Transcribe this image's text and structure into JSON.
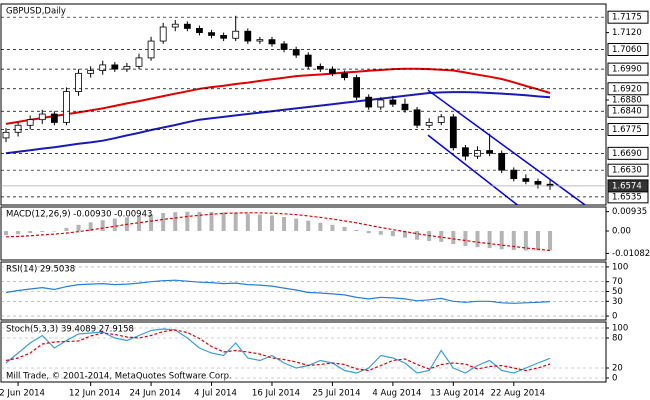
{
  "chart_data": [
    {
      "type": "candlestick",
      "title": "GBPUSD,Daily",
      "categories": [
        null,
        "2 Jun 2014",
        null,
        null,
        null,
        null,
        null,
        "12 Jun 2014",
        null,
        null,
        null,
        null,
        "24 Jun 2014",
        null,
        null,
        null,
        null,
        "4 Jul 2014",
        null,
        null,
        null,
        null,
        "16 Jul 2014",
        null,
        null,
        null,
        null,
        "25 Jul 2014",
        null,
        null,
        null,
        null,
        "4 Aug 2014",
        null,
        null,
        null,
        null,
        "13 Aug 2014",
        null,
        null,
        null,
        null,
        "22 Aug 2014",
        null,
        null,
        null
      ],
      "open": [
        1.6745,
        1.6765,
        1.679,
        1.681,
        1.683,
        1.68,
        1.691,
        1.6975,
        1.6985,
        1.7005,
        1.699,
        1.7,
        1.703,
        1.709,
        1.714,
        1.715,
        1.7135,
        1.712,
        1.711,
        1.71,
        1.7125,
        1.709,
        1.7095,
        1.708,
        1.706,
        1.704,
        1.7,
        1.699,
        1.6975,
        1.696,
        1.689,
        1.6855,
        1.688,
        1.6865,
        1.6845,
        1.679,
        1.68,
        1.682,
        1.671,
        1.668,
        1.67,
        1.669,
        1.663,
        1.66,
        1.659,
        1.658
      ],
      "high": [
        1.678,
        1.68,
        1.6825,
        1.6845,
        1.684,
        1.6925,
        1.699,
        1.7,
        1.702,
        1.7015,
        1.7012,
        1.7045,
        1.7105,
        1.7155,
        1.7165,
        1.716,
        1.7145,
        1.713,
        1.712,
        1.718,
        1.7135,
        1.7105,
        1.7105,
        1.709,
        1.707,
        1.705,
        1.701,
        1.7,
        1.6985,
        1.697,
        1.69,
        1.689,
        1.6895,
        1.6885,
        1.6855,
        1.6815,
        1.683,
        1.683,
        1.672,
        1.6715,
        1.676,
        1.67,
        1.664,
        1.6615,
        1.66,
        1.6595
      ],
      "low": [
        1.673,
        1.675,
        1.6775,
        1.6795,
        1.679,
        1.679,
        1.6895,
        1.696,
        1.697,
        1.698,
        1.698,
        1.699,
        1.702,
        1.708,
        1.7125,
        1.7125,
        1.711,
        1.71,
        1.709,
        1.709,
        1.708,
        1.708,
        1.707,
        1.705,
        1.703,
        1.699,
        1.698,
        1.6965,
        1.695,
        1.688,
        1.6845,
        1.6845,
        1.6855,
        1.6835,
        1.678,
        1.678,
        1.679,
        1.67,
        1.6665,
        1.667,
        1.668,
        1.662,
        1.659,
        1.658,
        1.6565,
        1.656
      ],
      "close": [
        1.6765,
        1.679,
        1.681,
        1.683,
        1.68,
        1.691,
        1.6975,
        1.6985,
        1.7005,
        1.699,
        1.7,
        1.703,
        1.709,
        1.714,
        1.715,
        1.7135,
        1.712,
        1.711,
        1.71,
        1.7125,
        1.709,
        1.7095,
        1.708,
        1.706,
        1.704,
        1.7,
        1.699,
        1.6975,
        1.696,
        1.689,
        1.6855,
        1.688,
        1.6865,
        1.6845,
        1.679,
        1.68,
        1.682,
        1.671,
        1.668,
        1.67,
        1.669,
        1.663,
        1.66,
        1.659,
        1.658,
        1.6574
      ],
      "series": [
        {
          "color": "#e00000",
          "values": [
            1.6795,
            1.6802,
            1.6809,
            1.6816,
            1.6823,
            1.6829,
            1.6836,
            1.6843,
            1.685,
            1.6859,
            1.6868,
            1.6876,
            1.6885,
            1.6894,
            1.6903,
            1.6911,
            1.692,
            1.6926,
            1.6931,
            1.6937,
            1.6942,
            1.6948,
            1.6954,
            1.6959,
            1.6965,
            1.6968,
            1.6971,
            1.6974,
            1.6978,
            1.6981,
            1.6984,
            1.6987,
            1.699,
            1.6991,
            1.6991,
            1.699,
            1.6988,
            1.6985,
            1.6978,
            1.697,
            1.6963,
            1.6955,
            1.6943,
            1.693,
            1.6918,
            1.6905
          ]
        },
        {
          "color": "#1a1ab4",
          "values": [
            1.669,
            1.6696,
            1.6701,
            1.6707,
            1.6712,
            1.6718,
            1.6724,
            1.6729,
            1.6735,
            1.6744,
            1.6754,
            1.6763,
            1.6773,
            1.6782,
            1.6791,
            1.6801,
            1.681,
            1.6815,
            1.682,
            1.6825,
            1.683,
            1.6835,
            1.684,
            1.6845,
            1.685,
            1.6855,
            1.686,
            1.6865,
            1.687,
            1.6875,
            1.688,
            1.6885,
            1.689,
            1.6895,
            1.69,
            1.6905,
            1.6907,
            1.6908,
            1.6908,
            1.6907,
            1.6905,
            1.6903,
            1.69,
            1.6897,
            1.6893,
            1.689
          ]
        }
      ],
      "channel": [
        {
          "x": [
            34.9,
            47.9
          ],
          "values": [
            1.6915,
            1.6506
          ]
        },
        {
          "x": [
            34.9,
            42.3
          ],
          "values": [
            1.6755,
            1.6506
          ]
        }
      ],
      "channel_color": "#0000ff",
      "ylim": [
        1.6506,
        1.7222
      ],
      "yticks": [
        {
          "value": 1.712,
          "label": "1.7120"
        },
        {
          "value": 1.688,
          "label": "1.6880"
        }
      ],
      "levels": [
        1.7175,
        {
          "value": 1.706,
          "label": "1.7060"
        },
        {
          "value": 1.699,
          "label": "1.6990"
        },
        {
          "value": 1.692,
          "label": "1.6920"
        },
        {
          "value": 1.684,
          "label": "1.6840"
        },
        1.6775,
        {
          "value": 1.669,
          "label": "1.6690"
        },
        {
          "value": 1.663,
          "label": "1.6630"
        },
        1.6535
      ],
      "current": 1.6574
    },
    {
      "type": "macd",
      "title": "MACD(12,26,9) -0.00930 -0.00943",
      "values": [
        -0.002,
        -0.0015,
        -0.001,
        -0.0005,
        0.0,
        0.0015,
        0.003,
        0.0042,
        0.0052,
        0.006,
        0.0066,
        0.0072,
        0.008,
        0.0087,
        0.0091,
        0.0093,
        0.0093,
        0.0092,
        0.009,
        0.0088,
        0.0084,
        0.008,
        0.0075,
        0.0068,
        0.006,
        0.005,
        0.004,
        0.003,
        0.002,
        0.0005,
        -0.001,
        -0.0018,
        -0.0025,
        -0.0032,
        -0.0042,
        -0.0048,
        -0.0052,
        -0.0063,
        -0.0072,
        -0.0078,
        -0.0082,
        -0.0088,
        -0.0092,
        -0.0094,
        -0.0094,
        -0.0093
      ],
      "color": "#b4b4b4",
      "series": [
        {
          "color": "#e00000",
          "values": [
            -0.0028,
            -0.0026,
            -0.0023,
            -0.0019,
            -0.0015,
            -0.001,
            -0.0003,
            0.0005,
            0.0014,
            0.0023,
            0.0032,
            0.004,
            0.0048,
            0.0056,
            0.0063,
            0.007,
            0.0076,
            0.0081,
            0.0085,
            0.0087,
            0.0088,
            0.0088,
            0.0086,
            0.0083,
            0.0079,
            0.0073,
            0.0066,
            0.0058,
            0.0049,
            0.0039,
            0.0028,
            0.0017,
            0.0007,
            -0.0003,
            -0.0013,
            -0.0022,
            -0.003,
            -0.0038,
            -0.0046,
            -0.0054,
            -0.0061,
            -0.0068,
            -0.0075,
            -0.0082,
            -0.0088,
            -0.0094
          ]
        }
      ],
      "ylim": [
        -0.014,
        0.0116
      ],
      "yticks": [
        0.00935,
        {
          "value": 0,
          "label": "0.00"
        },
        -0.01082
      ]
    },
    {
      "type": "line",
      "title": "RSI(14) 29.5038",
      "series": [
        {
          "color": "#2a7fd4",
          "values": [
            48,
            52,
            55,
            58,
            54,
            60,
            64,
            65,
            66,
            64,
            65,
            67,
            70,
            72,
            73,
            71,
            69,
            68,
            66,
            67,
            64,
            63,
            61,
            57,
            53,
            48,
            47,
            45,
            43,
            38,
            35,
            38,
            37,
            35,
            31,
            33,
            36,
            30,
            28,
            30,
            30,
            27,
            26,
            27,
            28,
            29.5038
          ]
        }
      ],
      "ylim": [
        -8,
        110
      ],
      "yticks": [
        100,
        70,
        50,
        30,
        0
      ]
    },
    {
      "type": "line",
      "title": "Stoch(5,3,3) 39.4089 27.9158",
      "series": [
        {
          "color": "#3aa0d8",
          "values": [
            30,
            50,
            70,
            85,
            60,
            75,
            88,
            90,
            92,
            80,
            75,
            85,
            95,
            98,
            96,
            80,
            60,
            50,
            45,
            70,
            40,
            35,
            45,
            30,
            20,
            25,
            35,
            30,
            15,
            10,
            20,
            45,
            40,
            30,
            10,
            15,
            55,
            20,
            10,
            25,
            35,
            15,
            10,
            20,
            30,
            39.4089
          ]
        },
        {
          "color": "#e00000",
          "dashed": true,
          "values": [
            35,
            40,
            50,
            68,
            72,
            73,
            74,
            84,
            90,
            87,
            82,
            80,
            85,
            93,
            96,
            91,
            79,
            63,
            52,
            55,
            52,
            48,
            40,
            37,
            32,
            25,
            27,
            30,
            27,
            18,
            15,
            25,
            35,
            38,
            27,
            18,
            27,
            30,
            28,
            18,
            23,
            25,
            20,
            15,
            20,
            27.9158
          ]
        }
      ],
      "ylim": [
        -8,
        112
      ],
      "yticks": [
        100,
        80,
        20,
        0
      ]
    }
  ],
  "footer": "Mill Trade, © 2001-2014, MetaQuotes Software Corp."
}
